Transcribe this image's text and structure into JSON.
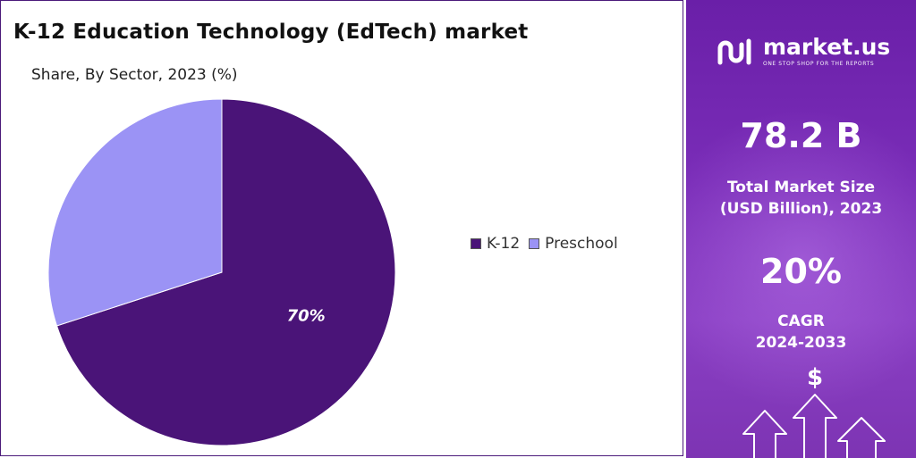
{
  "chart_data": {
    "type": "pie",
    "title": "K-12 Education Technology (EdTech) market",
    "subtitle": "Share, By Sector, 2023 (%)",
    "slices": [
      {
        "name": "K-12",
        "value": 70,
        "label": "70%",
        "color": "#4a1478"
      },
      {
        "name": "Preschool",
        "value": 30,
        "label": "",
        "color": "#9b93f5"
      }
    ],
    "legend_position": "right"
  },
  "sidebar": {
    "brand_name": "market.us",
    "brand_tagline": "ONE STOP SHOP FOR THE REPORTS",
    "market_size_value": "78.2 B",
    "market_size_label_line1": "Total Market Size",
    "market_size_label_line2": "(USD Billion), 2023",
    "cagr_value": "20%",
    "cagr_label_line1": "CAGR",
    "cagr_label_line2": "2024-2033",
    "dollar_symbol": "$",
    "accent_color": "#7a2db8"
  }
}
